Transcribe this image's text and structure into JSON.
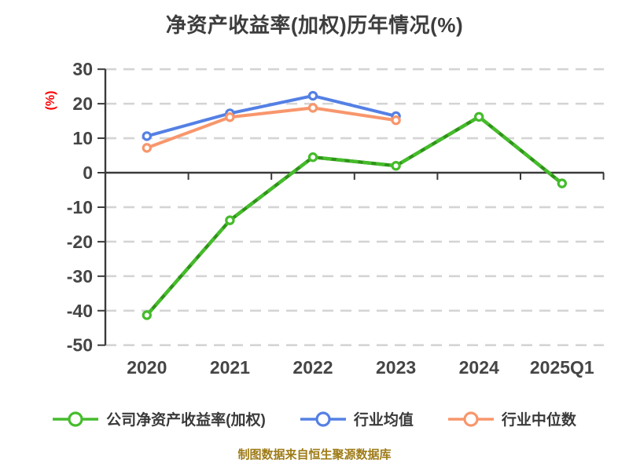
{
  "title": "净资产收益率(加权)历年情况(%)",
  "y_axis_label": "(%)",
  "footer": "制图数据来自恒生聚源数据库",
  "colors": {
    "company": "#45bc2b",
    "company_dark": "#2e9418",
    "industry_avg": "#5480e4",
    "industry_median": "#f8966c",
    "grid": "#d4d4d4",
    "axis": "#3a3a3a",
    "tick_text": "#454545",
    "title_text": "#3d3d3d",
    "y_label": "#ff0000",
    "footer": "#9e7b17"
  },
  "chart_data": {
    "type": "line",
    "title": "净资产收益率(加权)历年情况(%)",
    "categories": [
      "2020",
      "2021",
      "2022",
      "2023",
      "2024",
      "2025Q1"
    ],
    "series": [
      {
        "key": "company-roe-weighted",
        "name": "公司净资产收益率(加权)",
        "color": "#45bc2b",
        "line_style": "dashed-over-solid",
        "values": [
          -41.3,
          -13.8,
          4.5,
          2.0,
          16.2,
          -3.1
        ]
      },
      {
        "key": "industry-average",
        "name": "行业均值",
        "color": "#5480e4",
        "line_style": "solid",
        "values": [
          10.6,
          17.2,
          22.3,
          16.4,
          null,
          null
        ]
      },
      {
        "key": "industry-median",
        "name": "行业中位数",
        "color": "#f8966c",
        "line_style": "solid",
        "values": [
          7.2,
          16.1,
          18.8,
          15.2,
          null,
          null
        ]
      }
    ],
    "y_ticks": [
      30,
      20,
      10,
      0,
      -10,
      -20,
      -30,
      -40,
      -50
    ],
    "ylim": [
      -50,
      30
    ],
    "xlabel": "",
    "ylabel": "(%)",
    "grid": "horizontal-dashed",
    "legend_position": "bottom",
    "marker": "circle-white-fill"
  }
}
